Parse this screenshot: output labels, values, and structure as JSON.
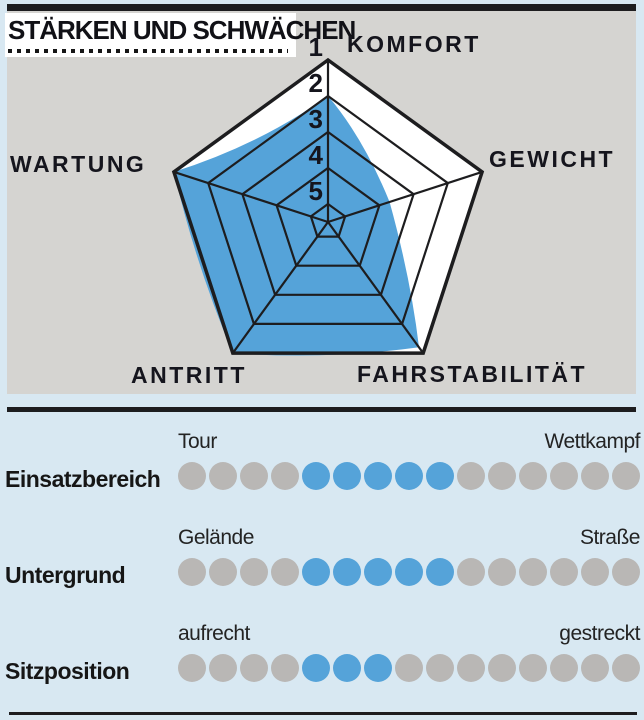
{
  "header": {
    "title": "STÄRKEN UND SCHWÄCHEN"
  },
  "colors": {
    "accent_blue": "#55a3d9",
    "dot_gray": "#b9b7b5",
    "panel_gray": "#d5d4d1",
    "page_bg": "#d8e8f2",
    "line_dark": "#1d1d1f",
    "text_dark": "#15151d"
  },
  "chart_data": {
    "type": "radar",
    "title": "STÄRKEN UND SCHWÄCHEN",
    "axes": [
      "KOMFORT",
      "GEWICHT",
      "FAHRSTABILITÄT",
      "ANTRITT",
      "WARTUNG"
    ],
    "scale_labels": [
      "1",
      "2",
      "3",
      "4",
      "5"
    ],
    "scale_note": "1 = outer ring, 5 = innermost ring",
    "rings": 5,
    "values": {
      "KOMFORT": 2.0,
      "GEWICHT": 3.7,
      "FAHRSTABILITÄT": 1.2,
      "ANTRITT": 1.0,
      "WARTUNG": 1.0
    }
  },
  "ratings": [
    {
      "label": "Einsatzbereich",
      "left_end": "Tour",
      "right_end": "Wettkampf",
      "total_dots": 15,
      "filled_count": 5,
      "dots": [
        0,
        0,
        0,
        0,
        1,
        1,
        1,
        1,
        1,
        0,
        0,
        0,
        0,
        0,
        0
      ]
    },
    {
      "label": "Untergrund",
      "left_end": "Gelände",
      "right_end": "Straße",
      "total_dots": 15,
      "filled_count": 5,
      "dots": [
        0,
        0,
        0,
        0,
        1,
        1,
        1,
        1,
        1,
        0,
        0,
        0,
        0,
        0,
        0
      ]
    },
    {
      "label": "Sitzposition",
      "left_end": "aufrecht",
      "right_end": "gestreckt",
      "total_dots": 15,
      "filled_count": 3,
      "dots": [
        0,
        0,
        0,
        0,
        1,
        1,
        1,
        0,
        0,
        0,
        0,
        0,
        0,
        0,
        0
      ]
    }
  ]
}
